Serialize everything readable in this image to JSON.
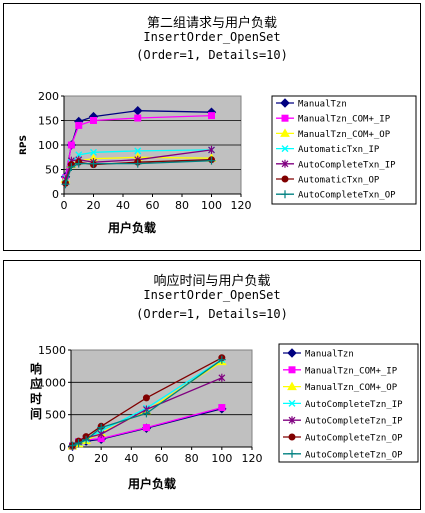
{
  "chart_data": [
    {
      "type": "line",
      "title": "第二组请求与用户负载",
      "subtitle": "InsertOrder_OpenSet",
      "subtitle2": "(Order=1, Details=10)",
      "xlabel": "用户负载",
      "ylabel": "RPS",
      "xlim": [
        0,
        120
      ],
      "ylim": [
        0,
        200
      ],
      "xticks": [
        "0",
        "20",
        "40",
        "60",
        "80",
        "100",
        "120"
      ],
      "yticks": [
        "0",
        "50",
        "100",
        "150",
        "200"
      ],
      "grid": "horizontal",
      "plot_background": "#c0c0c0",
      "legend_position": "right",
      "x": [
        1,
        5,
        10,
        20,
        50,
        100
      ],
      "series": [
        {
          "name": "ManualTzn",
          "values": [
            35,
            100,
            148,
            158,
            170,
            167
          ],
          "color": "#000080",
          "marker": "diamond"
        },
        {
          "name": "ManualTzn_COM+_IP",
          "values": [
            33,
            100,
            140,
            150,
            155,
            160
          ],
          "color": "#ff00ff",
          "marker": "square"
        },
        {
          "name": "ManualTzn_COM+_OP",
          "values": [
            30,
            60,
            68,
            72,
            75,
            73
          ],
          "color": "#ffff00",
          "marker": "triangle"
        },
        {
          "name": "AutomaticTxn_IP",
          "values": [
            32,
            65,
            80,
            85,
            88,
            90
          ],
          "color": "#00ffff",
          "marker": "x"
        },
        {
          "name": "AutoCompleteTxn_IP",
          "values": [
            30,
            68,
            70,
            65,
            70,
            90
          ],
          "color": "#800080",
          "marker": "star"
        },
        {
          "name": "AutomaticTxn_OP",
          "values": [
            22,
            60,
            65,
            60,
            65,
            70
          ],
          "color": "#800000",
          "marker": "circle"
        },
        {
          "name": "AutoCompleteTxn_OP",
          "values": [
            20,
            55,
            62,
            62,
            62,
            68
          ],
          "color": "#008080",
          "marker": "plus"
        }
      ]
    },
    {
      "type": "line",
      "title": "响应时间与用户负载",
      "subtitle": "InsertOrder_OpenSet",
      "subtitle2": "(Order=1, Details=10)",
      "xlabel": "用户负载",
      "ylabel": "响应时间",
      "xlim": [
        0,
        120
      ],
      "ylim": [
        0,
        1500
      ],
      "xticks": [
        "0",
        "20",
        "40",
        "60",
        "80",
        "100",
        "120"
      ],
      "yticks": [
        "0",
        "500",
        "1000",
        "1500"
      ],
      "grid": "horizontal",
      "plot_background": "#c0c0c0",
      "legend_position": "right",
      "x": [
        1,
        5,
        10,
        20,
        50,
        100
      ],
      "series": [
        {
          "name": "ManualTzn",
          "values": [
            10,
            60,
            90,
            120,
            290,
            590
          ],
          "color": "#000080",
          "marker": "diamond"
        },
        {
          "name": "ManualTzn_COM+_IP",
          "values": [
            12,
            80,
            110,
            130,
            300,
            610
          ],
          "color": "#ff00ff",
          "marker": "square"
        },
        {
          "name": "ManualTzn_COM+_OP",
          "values": [
            15,
            50,
            100,
            220,
            560,
            1320
          ],
          "color": "#ffff00",
          "marker": "triangle"
        },
        {
          "name": "AutoCompleteTzn_IP",
          "values": [
            15,
            70,
            120,
            250,
            600,
            1350
          ],
          "color": "#00ffff",
          "marker": "x"
        },
        {
          "name": "AutoCompleteTzn_IP",
          "values": [
            20,
            80,
            140,
            200,
            580,
            1070
          ],
          "color": "#800080",
          "marker": "star"
        },
        {
          "name": "AutoCompleteTzn_OP",
          "values": [
            20,
            90,
            160,
            320,
            760,
            1380
          ],
          "color": "#800000",
          "marker": "circle"
        },
        {
          "name": "AutoCompleteTzn_OP",
          "values": [
            20,
            60,
            110,
            300,
            520,
            1350
          ],
          "color": "#008080",
          "marker": "plus"
        }
      ]
    }
  ]
}
